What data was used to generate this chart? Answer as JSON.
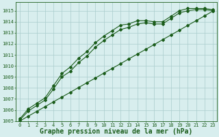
{
  "bg_color": "#d8eeee",
  "plot_bg_color": "#d8eeee",
  "grid_color": "#aacccc",
  "line_color": "#1a5c1a",
  "xlabel": "Graphe pression niveau de la mer (hPa)",
  "xlabel_fontsize": 7,
  "ylim": [
    1005,
    1015.8
  ],
  "xlim": [
    -0.5,
    23.5
  ],
  "yticks": [
    1005,
    1006,
    1007,
    1008,
    1009,
    1010,
    1011,
    1012,
    1013,
    1014,
    1015
  ],
  "xticks": [
    0,
    1,
    2,
    3,
    4,
    5,
    6,
    7,
    8,
    9,
    10,
    11,
    12,
    13,
    14,
    15,
    16,
    17,
    18,
    19,
    20,
    21,
    22,
    23
  ],
  "series1_x": [
    0,
    1,
    2,
    3,
    4,
    5,
    6,
    7,
    8,
    9,
    10,
    11,
    12,
    13,
    14,
    15,
    16,
    17,
    18,
    19,
    20,
    21,
    22,
    23
  ],
  "series1_y": [
    1005.2,
    1006.1,
    1006.6,
    1007.1,
    1008.2,
    1009.3,
    1009.9,
    1010.7,
    1011.3,
    1012.1,
    1012.7,
    1013.2,
    1013.7,
    1013.8,
    1014.1,
    1014.1,
    1014.0,
    1014.0,
    1014.5,
    1015.0,
    1015.2,
    1015.2,
    1015.2,
    1015.1
  ],
  "series2_x": [
    0,
    1,
    2,
    3,
    4,
    5,
    6,
    7,
    8,
    9,
    10,
    11,
    12,
    13,
    14,
    15,
    16,
    17,
    18,
    19,
    20,
    21,
    22,
    23
  ],
  "series2_y": [
    1005.1,
    1005.9,
    1006.4,
    1006.9,
    1007.9,
    1009.0,
    1009.5,
    1010.3,
    1010.9,
    1011.7,
    1012.3,
    1012.8,
    1013.3,
    1013.5,
    1013.8,
    1013.9,
    1013.8,
    1013.8,
    1014.3,
    1014.8,
    1015.0,
    1015.1,
    1015.1,
    1015.0
  ],
  "series3_x": [
    0,
    1,
    2,
    3,
    4,
    5,
    6,
    7,
    8,
    9,
    10,
    11,
    12,
    13,
    14,
    15,
    16,
    17,
    18,
    19,
    20,
    21,
    22,
    23
  ],
  "series3_y": [
    1005.0,
    1005.44,
    1005.87,
    1006.3,
    1006.74,
    1007.17,
    1007.6,
    1008.04,
    1008.47,
    1008.9,
    1009.34,
    1009.77,
    1010.2,
    1010.64,
    1011.07,
    1011.5,
    1011.93,
    1012.37,
    1012.8,
    1013.23,
    1013.67,
    1014.1,
    1014.53,
    1014.97
  ],
  "tick_fontsize": 5,
  "marker": "D",
  "markersize": 2.0,
  "linewidth": 0.8
}
